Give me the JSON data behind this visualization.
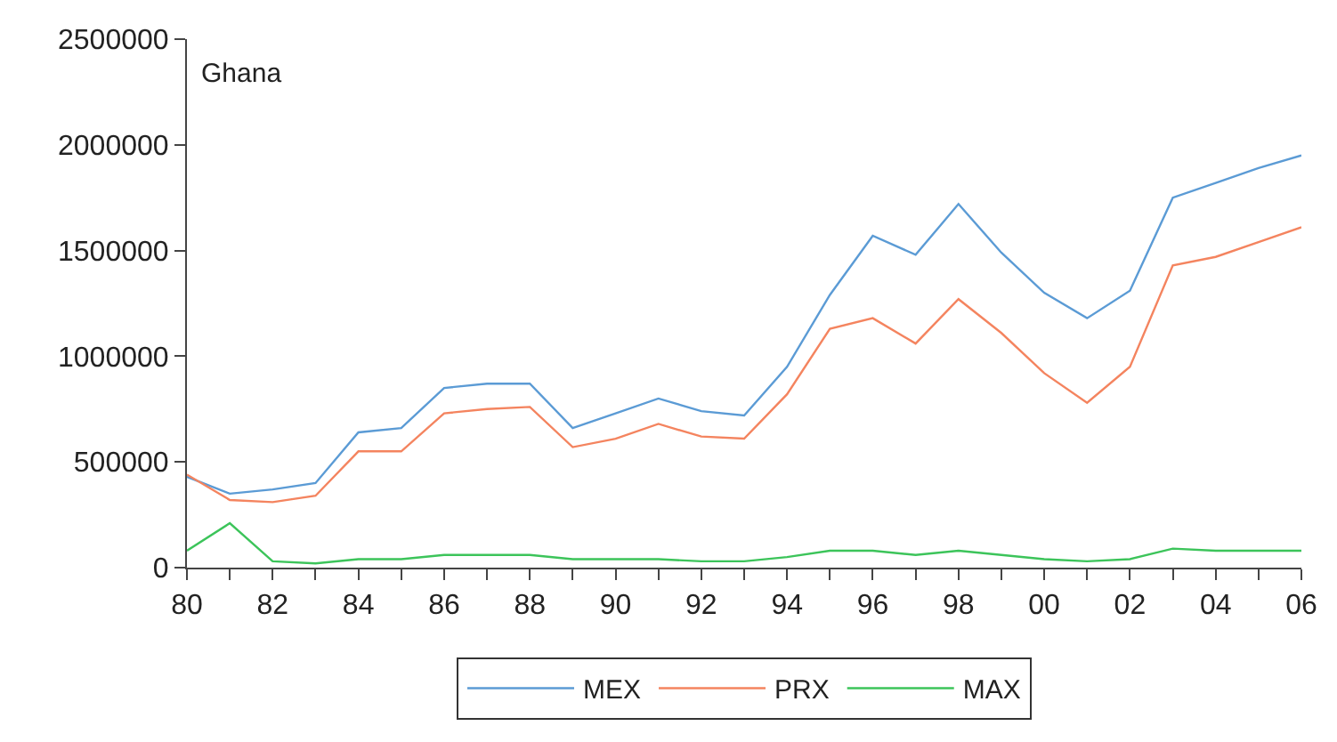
{
  "chart_data": {
    "type": "line",
    "title": "Ghana",
    "x": [
      1980,
      1981,
      1982,
      1983,
      1984,
      1985,
      1986,
      1987,
      1988,
      1989,
      1990,
      1991,
      1992,
      1993,
      1994,
      1995,
      1996,
      1997,
      1998,
      1999,
      2000,
      2001,
      2002,
      2003,
      2004,
      2005,
      2006
    ],
    "series": [
      {
        "name": "MEX",
        "color": "#5b9bd5",
        "values": [
          430000,
          350000,
          370000,
          400000,
          640000,
          660000,
          850000,
          870000,
          870000,
          660000,
          730000,
          800000,
          740000,
          720000,
          950000,
          1290000,
          1570000,
          1480000,
          1720000,
          1490000,
          1300000,
          1180000,
          1310000,
          1750000,
          1820000,
          1890000,
          1950000
        ]
      },
      {
        "name": "PRX",
        "color": "#f4845f",
        "values": [
          440000,
          320000,
          310000,
          340000,
          550000,
          550000,
          730000,
          750000,
          760000,
          570000,
          610000,
          680000,
          620000,
          610000,
          820000,
          1130000,
          1180000,
          1060000,
          1270000,
          1110000,
          920000,
          780000,
          950000,
          1430000,
          1470000,
          1540000,
          1610000
        ]
      },
      {
        "name": "MAX",
        "color": "#3cc45a",
        "values": [
          80000,
          210000,
          30000,
          20000,
          40000,
          40000,
          60000,
          60000,
          60000,
          40000,
          40000,
          40000,
          30000,
          30000,
          50000,
          80000,
          80000,
          60000,
          80000,
          60000,
          40000,
          30000,
          40000,
          90000,
          80000,
          80000,
          80000
        ]
      }
    ],
    "xlim": [
      1980,
      2006
    ],
    "xticks": [
      {
        "value": 1980,
        "label": "80"
      },
      {
        "value": 1981,
        "label": null
      },
      {
        "value": 1982,
        "label": "82"
      },
      {
        "value": 1983,
        "label": null
      },
      {
        "value": 1984,
        "label": "84"
      },
      {
        "value": 1985,
        "label": null
      },
      {
        "value": 1986,
        "label": "86"
      },
      {
        "value": 1987,
        "label": null
      },
      {
        "value": 1988,
        "label": "88"
      },
      {
        "value": 1989,
        "label": null
      },
      {
        "value": 1990,
        "label": "90"
      },
      {
        "value": 1991,
        "label": null
      },
      {
        "value": 1992,
        "label": "92"
      },
      {
        "value": 1993,
        "label": null
      },
      {
        "value": 1994,
        "label": "94"
      },
      {
        "value": 1995,
        "label": null
      },
      {
        "value": 1996,
        "label": "96"
      },
      {
        "value": 1997,
        "label": null
      },
      {
        "value": 1998,
        "label": "98"
      },
      {
        "value": 1999,
        "label": null
      },
      {
        "value": 2000,
        "label": "00"
      },
      {
        "value": 2001,
        "label": null
      },
      {
        "value": 2002,
        "label": "02"
      },
      {
        "value": 2003,
        "label": null
      },
      {
        "value": 2004,
        "label": "04"
      },
      {
        "value": 2005,
        "label": null
      },
      {
        "value": 2006,
        "label": "06"
      }
    ],
    "ylim": [
      0,
      2500000
    ],
    "yticks": [
      0,
      500000,
      1000000,
      1500000,
      2000000,
      2500000
    ],
    "grid": false,
    "legend": "bottom",
    "marker": "none",
    "line_style": "solid"
  }
}
